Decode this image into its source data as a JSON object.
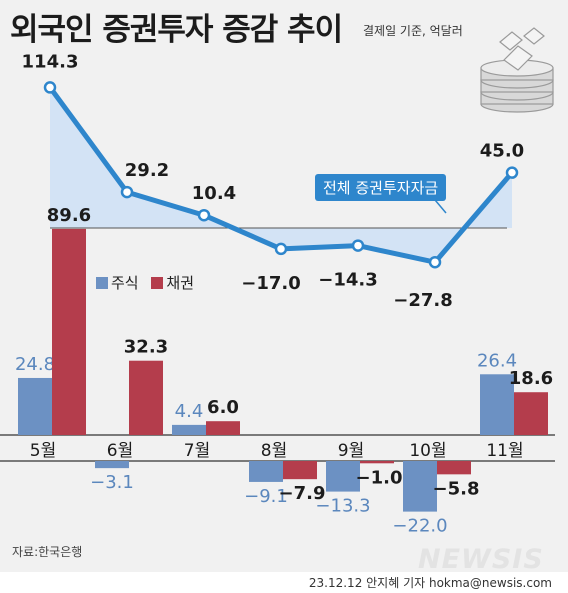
{
  "header": {
    "title": "외국인 증권투자 증감 추이",
    "subtitle": "결제일 기준, 억달러"
  },
  "legend": {
    "stock": "주식",
    "bond": "채권"
  },
  "total_series_label": "전체 증권투자자금",
  "source": "자료:한국은행",
  "credit": "23.12.12 안지혜 기자 hokma@newsis.com",
  "watermark": "NEWSIS",
  "icon": "money-stack-icon",
  "colors": {
    "stock": "#6c91c3",
    "bond": "#b43d4c",
    "total": "#2e86cc",
    "total_fill": "#cfe1f5",
    "dark_text": "#1c1c1c"
  },
  "chart_data": [
    {
      "type": "line",
      "categories": [
        "5월",
        "6월",
        "7월",
        "8월",
        "9월",
        "10월",
        "11월"
      ],
      "series": [
        {
          "name": "전체 증권투자자금",
          "values": [
            114.3,
            29.2,
            10.4,
            -17.0,
            -14.3,
            -27.8,
            45.0
          ]
        }
      ],
      "value_labels": [
        "114.3",
        "29.2",
        "10.4",
        "−17.0",
        "−14.3",
        "−27.8",
        "45.0"
      ]
    },
    {
      "type": "bar",
      "categories": [
        "5월",
        "6월",
        "7월",
        "8월",
        "9월",
        "10월",
        "11월"
      ],
      "series": [
        {
          "name": "주식",
          "values": [
            24.8,
            -3.1,
            4.4,
            -9.1,
            -13.3,
            -22.0,
            26.4
          ],
          "labels": [
            "24.8",
            "−3.1",
            "4.4",
            "−9.1",
            "−13.3",
            "−22.0",
            "26.4"
          ]
        },
        {
          "name": "채권",
          "values": [
            89.6,
            32.3,
            6.0,
            -7.9,
            -1.0,
            -5.8,
            18.6
          ],
          "labels": [
            "89.6",
            "32.3",
            "6.0",
            "−7.9",
            "−1.0",
            "−5.8",
            "18.6"
          ]
        }
      ]
    }
  ]
}
